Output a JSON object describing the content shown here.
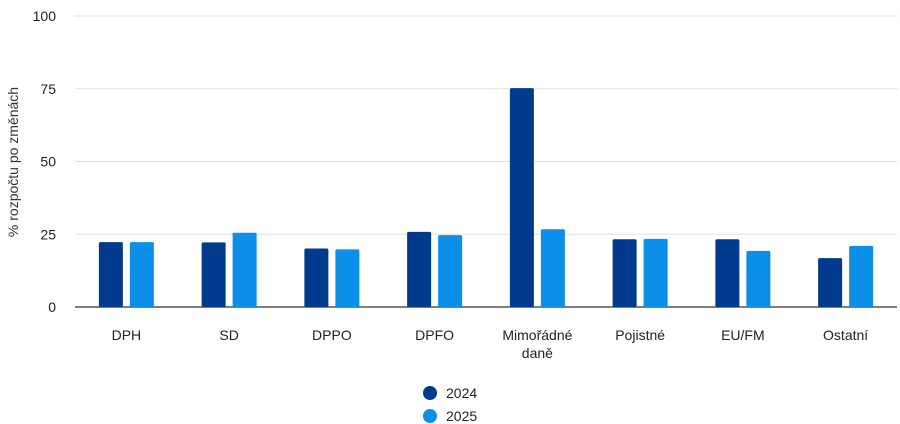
{
  "chart_data": {
    "type": "bar",
    "title": "",
    "xlabel": "",
    "ylabel": "% rozpočtu po změnách",
    "ylim": [
      0,
      100
    ],
    "yticks": [
      0,
      25,
      50,
      75,
      100
    ],
    "grid": true,
    "legend_position": "bottom-center",
    "categories": [
      [
        "DPH"
      ],
      [
        "SD"
      ],
      [
        "DPPO"
      ],
      [
        "DPFO"
      ],
      [
        "Mimořádné",
        "daně"
      ],
      [
        "Pojistné"
      ],
      [
        "EU/FM"
      ],
      [
        "Ostatní"
      ]
    ],
    "series": [
      {
        "name": "2024",
        "color": "#003A8C",
        "values": [
          22.3,
          22.2,
          20.1,
          25.8,
          75.2,
          23.3,
          23.3,
          16.8
        ]
      },
      {
        "name": "2025",
        "color": "#0B8FE8",
        "values": [
          22.3,
          25.5,
          19.8,
          24.7,
          26.7,
          23.4,
          19.3,
          21.0
        ]
      }
    ]
  }
}
